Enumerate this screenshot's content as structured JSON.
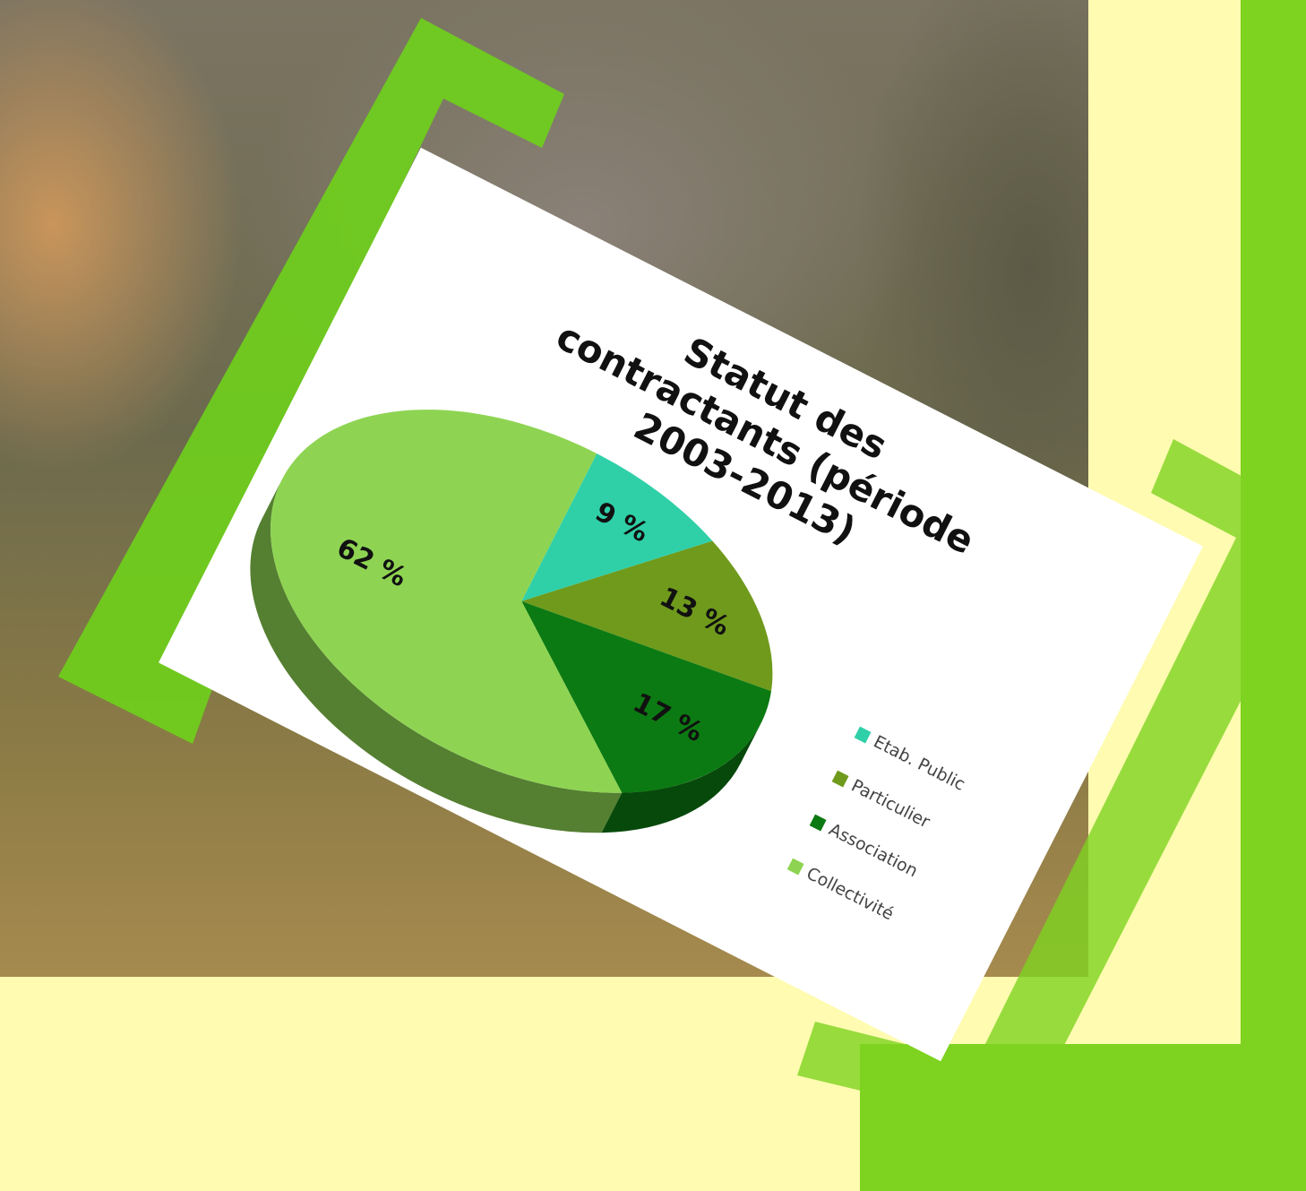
{
  "chart_data": {
    "type": "pie",
    "title": "Statut des contractants (période 2003-2013)",
    "categories": [
      "Etab. Public",
      "Particulier",
      "Association",
      "Collectivité"
    ],
    "values": [
      9,
      13,
      17,
      62
    ],
    "value_labels": [
      "9 %",
      "13 %",
      "17 %",
      "62 %"
    ],
    "colors": [
      "#2fd0a8",
      "#6f9a1c",
      "#0c7a12",
      "#8ed452"
    ],
    "legend": "right"
  }
}
